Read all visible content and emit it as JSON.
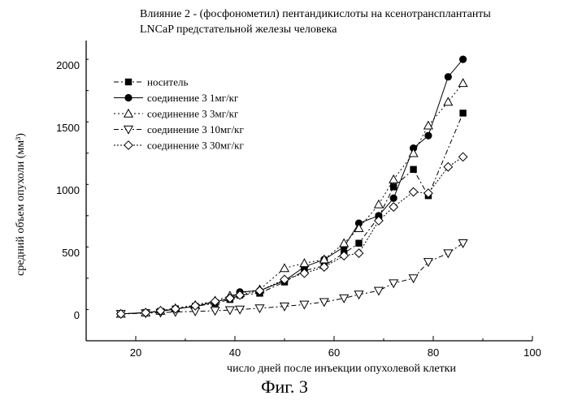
{
  "chart_data": {
    "type": "line",
    "title_lines": [
      "Влияние 2 - (фосфонометил) пентандикислоты на ксенотрансплантанты",
      "LNCaP предстательной железы человека"
    ],
    "xlabel": "число дней после инъекции опухолевой клетки",
    "ylabel": "средний объем опухоли (мм³)",
    "xlim": [
      10,
      100
    ],
    "ylim": [
      -200,
      2200
    ],
    "xticks": [
      20,
      40,
      60,
      80,
      100
    ],
    "yticks": [
      0,
      500,
      1000,
      1500,
      2000
    ],
    "legend_position": "upper-left",
    "series": [
      {
        "name": "носитель",
        "marker": "square",
        "dash": "6,3,2,3",
        "x": [
          17,
          22,
          25,
          28,
          32,
          36,
          39,
          41,
          45,
          50,
          54,
          58,
          62,
          65,
          69,
          72,
          76,
          79,
          86
        ],
        "y": [
          15,
          25,
          35,
          55,
          75,
          100,
          130,
          165,
          180,
          270,
          360,
          400,
          500,
          580,
          790,
          1030,
          1170,
          960,
          1620
        ]
      },
      {
        "name": "соединение 3    1мг/кг",
        "marker": "circle",
        "dash": "",
        "x": [
          17,
          22,
          25,
          28,
          32,
          36,
          39,
          41,
          45,
          50,
          54,
          58,
          62,
          65,
          69,
          72,
          76,
          79,
          83,
          86
        ],
        "y": [
          15,
          25,
          35,
          55,
          75,
          110,
          140,
          190,
          200,
          280,
          390,
          450,
          550,
          740,
          800,
          940,
          1340,
          1440,
          1910,
          2050
        ]
      },
      {
        "name": "соединение 3    3мг/кг",
        "marker": "triangle-up",
        "dash": "2,3",
        "x": [
          17,
          22,
          25,
          28,
          32,
          36,
          39,
          41,
          45,
          50,
          54,
          58,
          62,
          65,
          69,
          72,
          76,
          79,
          83,
          86
        ],
        "y": [
          15,
          25,
          40,
          60,
          85,
          120,
          160,
          180,
          210,
          380,
          420,
          450,
          580,
          700,
          890,
          1090,
          1300,
          1520,
          1710,
          1860
        ]
      },
      {
        "name": "соединение 3    10мг/кг",
        "marker": "triangle-down",
        "dash": "6,3,2,3",
        "x": [
          17,
          22,
          25,
          28,
          32,
          36,
          39,
          41,
          45,
          50,
          54,
          58,
          62,
          65,
          69,
          72,
          76,
          79,
          83,
          86
        ],
        "y": [
          15,
          20,
          25,
          30,
          35,
          40,
          45,
          50,
          60,
          75,
          90,
          110,
          140,
          170,
          200,
          260,
          300,
          430,
          500,
          580
        ]
      },
      {
        "name": "соединение 3    30мг/кг",
        "marker": "diamond",
        "dash": "2,2",
        "x": [
          17,
          22,
          25,
          28,
          32,
          36,
          39,
          41,
          45,
          50,
          54,
          58,
          62,
          65,
          69,
          72,
          76,
          79,
          83,
          86
        ],
        "y": [
          15,
          25,
          40,
          55,
          80,
          115,
          140,
          165,
          200,
          290,
          340,
          390,
          480,
          500,
          760,
          870,
          990,
          980,
          1190,
          1270
        ]
      }
    ]
  },
  "caption": "Фиг. 3"
}
